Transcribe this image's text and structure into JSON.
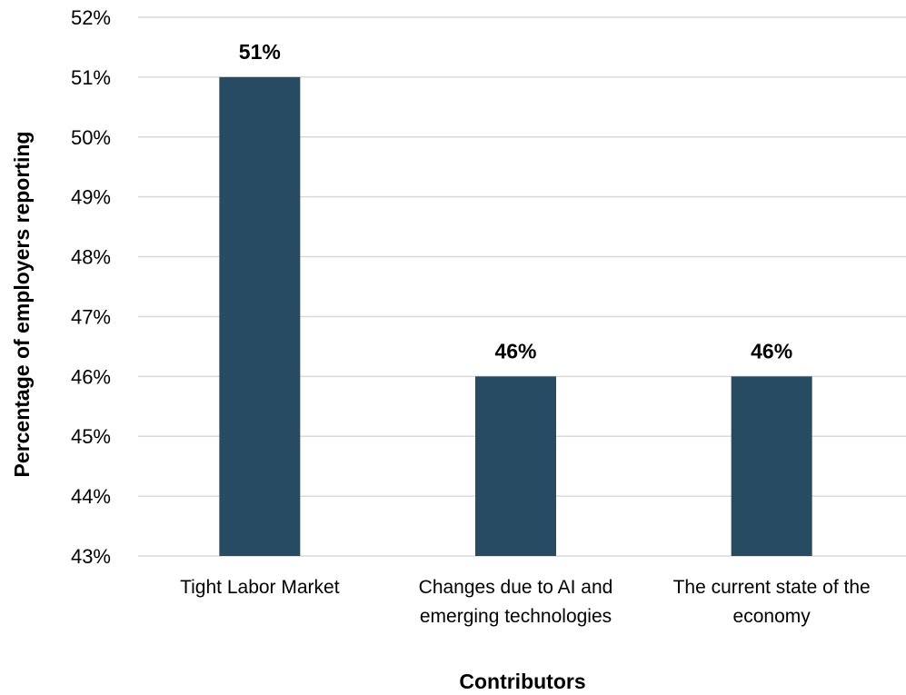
{
  "chart_data": {
    "type": "bar",
    "categories": [
      [
        "Tight Labor Market"
      ],
      [
        "Changes due to AI and",
        "emerging technologies"
      ],
      [
        "The current state of the",
        "economy"
      ]
    ],
    "values": [
      51,
      46,
      46
    ],
    "data_labels": [
      "51%",
      "46%",
      "46%"
    ],
    "title": "",
    "xlabel": "Contributors",
    "ylabel": "Percentage of employers reporting",
    "ylim": [
      43,
      52
    ],
    "yticks": [
      43,
      44,
      45,
      46,
      47,
      48,
      49,
      50,
      51,
      52
    ],
    "ytick_labels": [
      "43%",
      "44%",
      "45%",
      "46%",
      "47%",
      "48%",
      "49%",
      "50%",
      "51%",
      "52%"
    ],
    "grid": true,
    "legend": "none",
    "colors": {
      "bar": "#264b63",
      "grid": "#d9d9d9"
    }
  }
}
